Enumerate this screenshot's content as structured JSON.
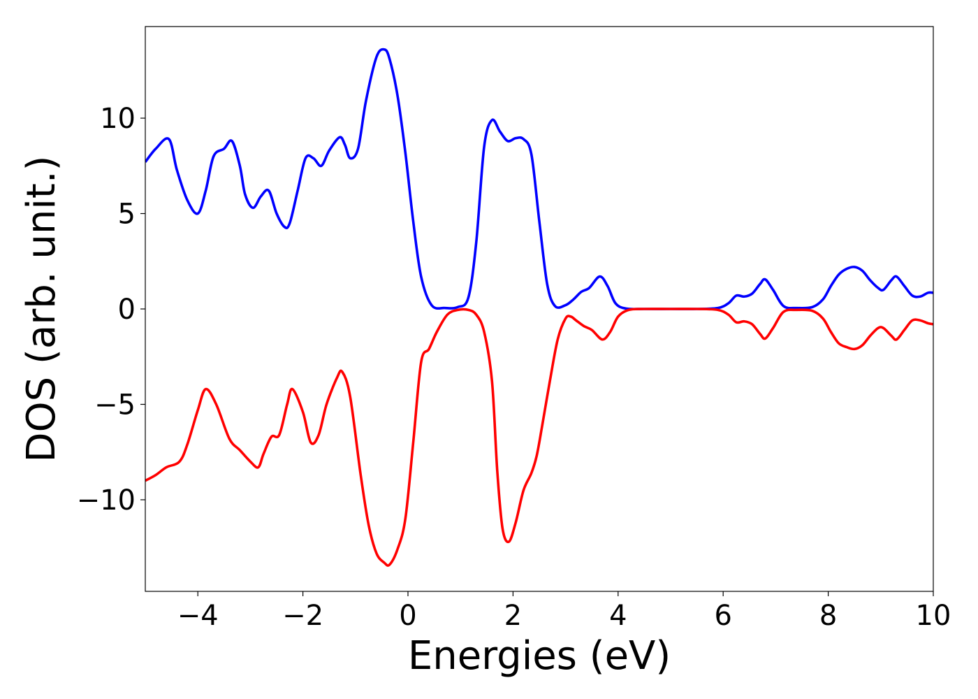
{
  "chart_data": {
    "type": "line",
    "xlabel": "Energies (eV)",
    "ylabel": "DOS (arb. unit.)",
    "xlim": [
      -5,
      10
    ],
    "ylim": [
      -14.8,
      14.8
    ],
    "grid": false,
    "x_ticks": [
      -4,
      -2,
      0,
      2,
      4,
      6,
      8,
      10
    ],
    "x_tick_labels": [
      "−4",
      "−2",
      "0",
      "2",
      "4",
      "6",
      "8",
      "10"
    ],
    "y_ticks": [
      10,
      5,
      0,
      -5,
      -10
    ],
    "y_tick_labels": [
      "10",
      "5",
      "0",
      "−5",
      "−10"
    ],
    "series": [
      {
        "color": "#0000ff",
        "x": [
          -5,
          -4.8,
          -4.55,
          -4.4,
          -4.2,
          -4.0,
          -3.85,
          -3.7,
          -3.5,
          -3.35,
          -3.2,
          -3.1,
          -2.95,
          -2.8,
          -2.65,
          -2.5,
          -2.35,
          -2.25,
          -2.1,
          -1.95,
          -1.8,
          -1.65,
          -1.5,
          -1.3,
          -1.2,
          -1.1,
          -0.95,
          -0.8,
          -0.6,
          -0.45,
          -0.35,
          -0.2,
          -0.05,
          0.1,
          0.25,
          0.45,
          0.7,
          0.95,
          1.15,
          1.3,
          1.45,
          1.6,
          1.75,
          1.9,
          2.05,
          2.2,
          2.35,
          2.5,
          2.65,
          2.8,
          3.0,
          3.15,
          3.3,
          3.45,
          3.65,
          3.8,
          3.95,
          4.15,
          4.5,
          5.0,
          5.5,
          5.9,
          6.1,
          6.25,
          6.4,
          6.55,
          6.7,
          6.8,
          6.95,
          7.15,
          7.4,
          7.7,
          7.9,
          8.05,
          8.2,
          8.35,
          8.5,
          8.65,
          8.8,
          8.95,
          9.05,
          9.2,
          9.3,
          9.45,
          9.6,
          9.75,
          9.9,
          10.0
        ],
        "y": [
          7.7,
          8.4,
          8.9,
          7.3,
          5.7,
          5.0,
          6.2,
          8.0,
          8.4,
          8.8,
          7.5,
          6.0,
          5.3,
          5.9,
          6.2,
          5.0,
          4.3,
          4.5,
          6.2,
          7.9,
          7.9,
          7.5,
          8.3,
          9.0,
          8.6,
          7.9,
          8.4,
          10.9,
          13.2,
          13.6,
          13.1,
          11.2,
          8.2,
          4.6,
          1.7,
          0.2,
          0.05,
          0.1,
          0.6,
          3.5,
          8.5,
          9.9,
          9.3,
          8.8,
          8.95,
          8.9,
          8.1,
          4.6,
          1.3,
          0.15,
          0.2,
          0.5,
          0.9,
          1.1,
          1.7,
          1.2,
          0.3,
          0.02,
          0.0,
          0.0,
          0.0,
          0.05,
          0.3,
          0.7,
          0.65,
          0.8,
          1.3,
          1.55,
          1.0,
          0.15,
          0.05,
          0.1,
          0.5,
          1.2,
          1.8,
          2.1,
          2.2,
          2.0,
          1.5,
          1.1,
          1.0,
          1.5,
          1.7,
          1.2,
          0.7,
          0.65,
          0.85,
          0.85
        ]
      },
      {
        "color": "#ff0000",
        "x": [
          -5,
          -4.8,
          -4.6,
          -4.35,
          -4.2,
          -4.0,
          -3.85,
          -3.65,
          -3.4,
          -3.2,
          -3.0,
          -2.85,
          -2.75,
          -2.6,
          -2.45,
          -2.3,
          -2.2,
          -2.0,
          -1.85,
          -1.7,
          -1.55,
          -1.35,
          -1.25,
          -1.1,
          -0.9,
          -0.75,
          -0.6,
          -0.45,
          -0.35,
          -0.2,
          -0.05,
          0.1,
          0.25,
          0.4,
          0.55,
          0.75,
          0.95,
          1.15,
          1.3,
          1.45,
          1.6,
          1.7,
          1.8,
          1.92,
          2.05,
          2.2,
          2.35,
          2.45,
          2.55,
          2.7,
          2.85,
          3.0,
          3.1,
          3.2,
          3.35,
          3.5,
          3.7,
          3.85,
          4.0,
          4.2,
          4.5,
          5.0,
          5.5,
          5.9,
          6.1,
          6.25,
          6.4,
          6.55,
          6.7,
          6.8,
          6.95,
          7.15,
          7.4,
          7.7,
          7.9,
          8.05,
          8.2,
          8.35,
          8.5,
          8.65,
          8.8,
          8.95,
          9.05,
          9.2,
          9.3,
          9.45,
          9.6,
          9.75,
          9.9,
          10.0
        ],
        "y": [
          -9.0,
          -8.7,
          -8.3,
          -8.0,
          -7.1,
          -5.3,
          -4.2,
          -5.0,
          -6.8,
          -7.4,
          -8.0,
          -8.3,
          -7.6,
          -6.7,
          -6.6,
          -5.0,
          -4.2,
          -5.4,
          -7.0,
          -6.6,
          -5.0,
          -3.6,
          -3.3,
          -4.6,
          -8.7,
          -11.3,
          -12.8,
          -13.3,
          -13.4,
          -12.6,
          -11.0,
          -7.0,
          -2.8,
          -2.1,
          -1.2,
          -0.3,
          -0.05,
          -0.05,
          -0.3,
          -1.2,
          -3.8,
          -8.5,
          -11.5,
          -12.2,
          -11.2,
          -9.5,
          -8.6,
          -7.7,
          -6.2,
          -3.8,
          -1.6,
          -0.5,
          -0.4,
          -0.6,
          -0.9,
          -1.1,
          -1.6,
          -1.2,
          -0.4,
          -0.05,
          0.0,
          0.0,
          0.0,
          -0.05,
          -0.3,
          -0.7,
          -0.65,
          -0.8,
          -1.3,
          -1.55,
          -1.0,
          -0.15,
          -0.05,
          -0.1,
          -0.5,
          -1.2,
          -1.8,
          -2.0,
          -2.1,
          -1.9,
          -1.4,
          -1.0,
          -1.0,
          -1.4,
          -1.6,
          -1.1,
          -0.6,
          -0.6,
          -0.75,
          -0.8
        ]
      }
    ]
  }
}
